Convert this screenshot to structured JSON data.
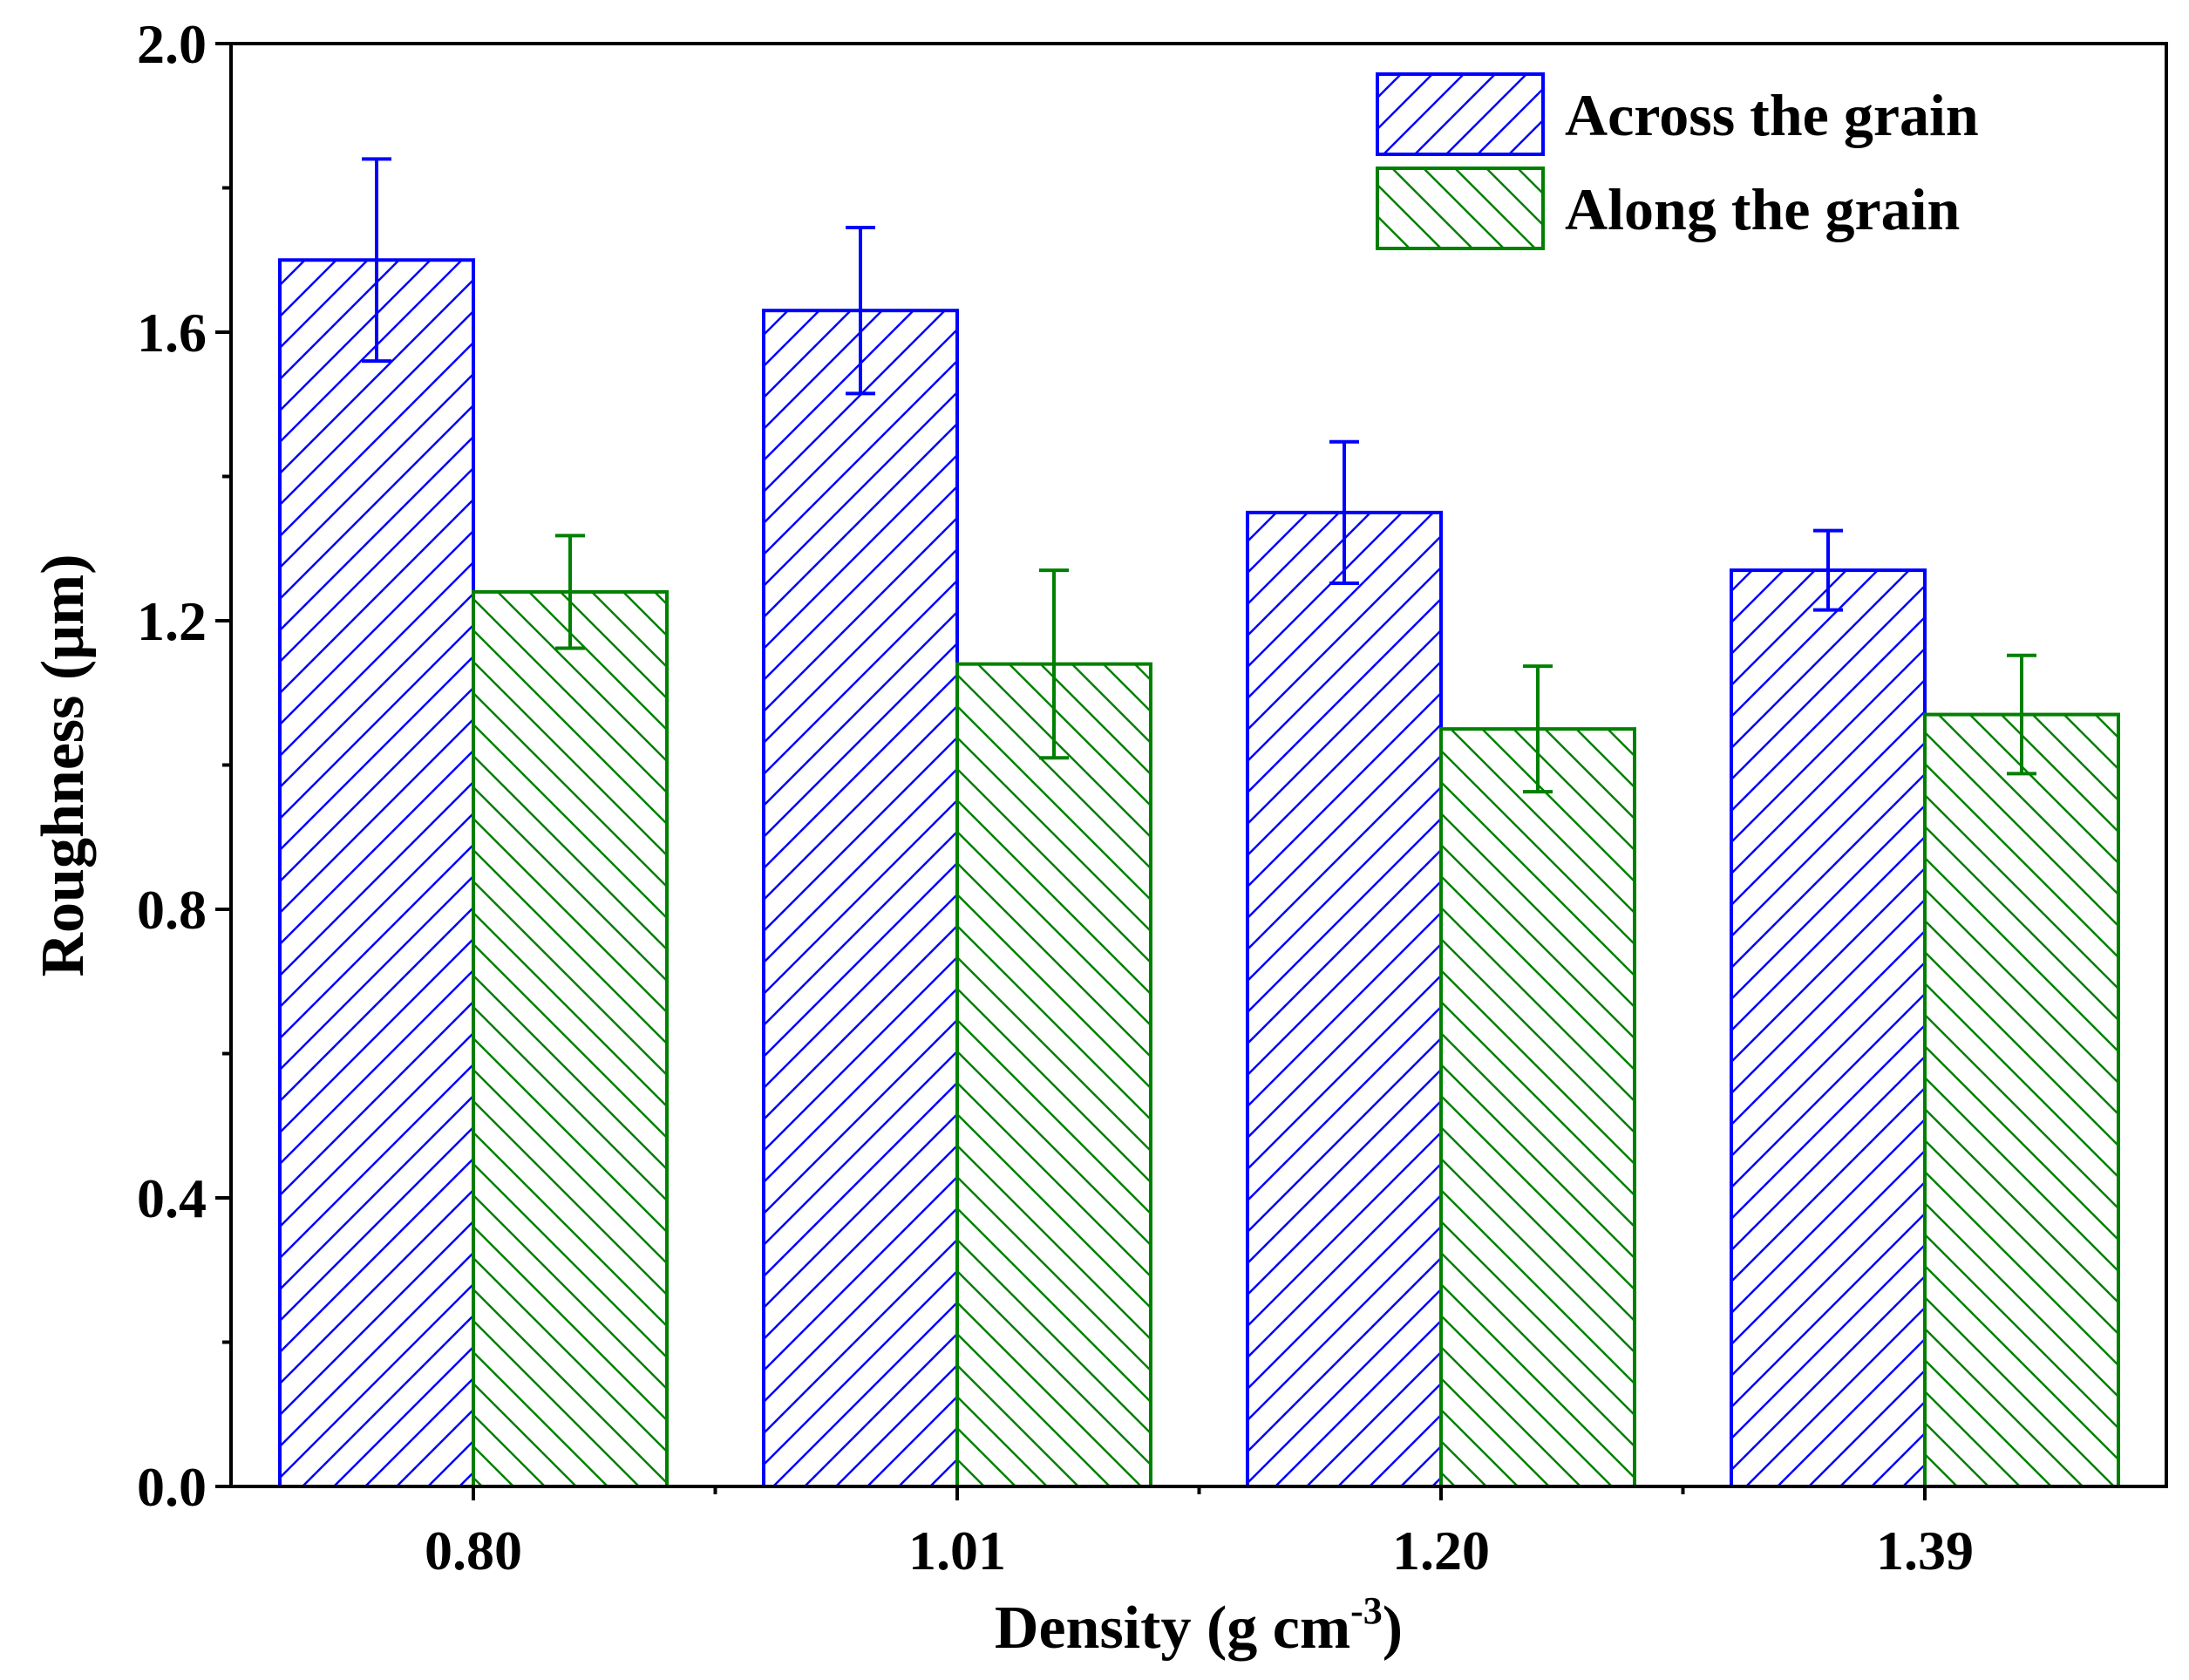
{
  "chart_data": {
    "type": "bar",
    "title": "",
    "xlabel": "Density (g cm",
    "xlabel_sup": "-3",
    "xlabel_close": ")",
    "ylabel": "Roughness (μm)",
    "ylim": [
      0,
      2.0
    ],
    "yticks": [
      0.0,
      0.4,
      0.8,
      1.2,
      1.6,
      2.0
    ],
    "ytick_labels": [
      "0.0",
      "0.4",
      "0.8",
      "1.2",
      "1.6",
      "2.0"
    ],
    "categories": [
      "0.80",
      "1.01",
      "1.20",
      "1.39"
    ],
    "legend_position": "top-right",
    "grid": false,
    "series": [
      {
        "name": "Across the grain",
        "color": "#0000ff",
        "hatch": "forward",
        "values": [
          1.7,
          1.63,
          1.35,
          1.27
        ],
        "errors": [
          0.14,
          0.115,
          0.098,
          0.055
        ]
      },
      {
        "name": "Along the grain",
        "color": "#008000",
        "hatch": "backward",
        "values": [
          1.24,
          1.14,
          1.05,
          1.07
        ],
        "errors": [
          0.078,
          0.13,
          0.087,
          0.082
        ]
      }
    ]
  }
}
